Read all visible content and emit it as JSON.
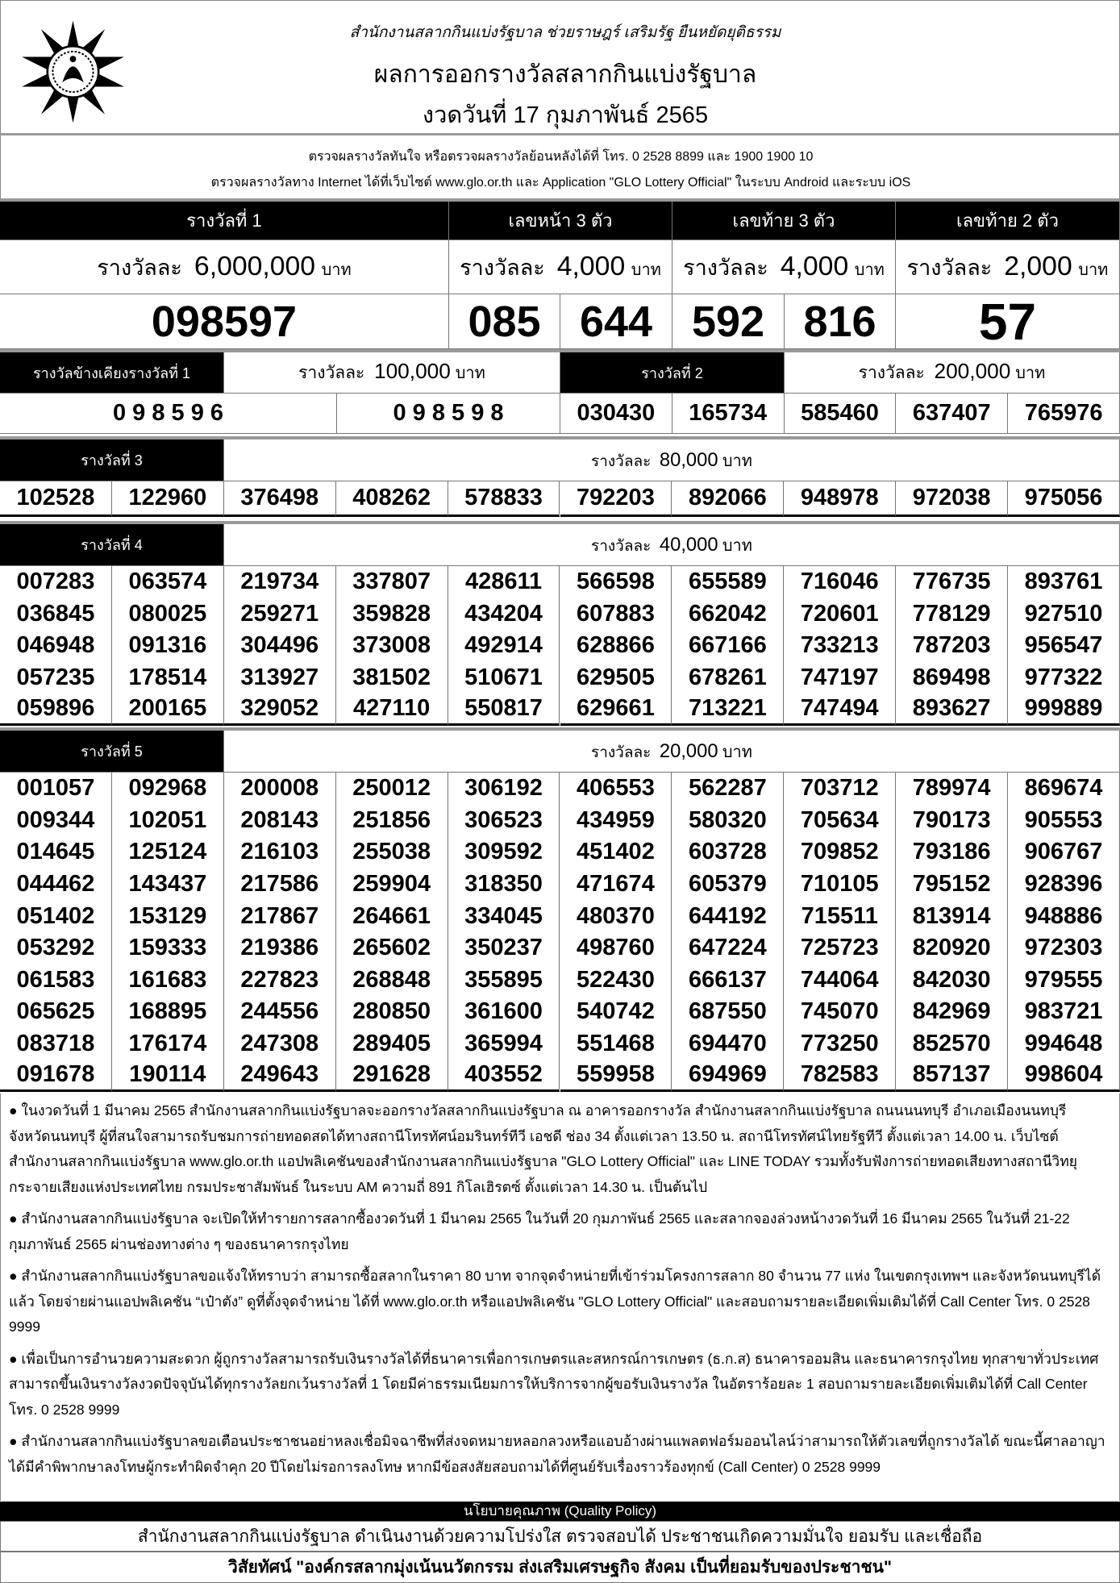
{
  "header": {
    "logo": "GLO emblem",
    "motto": "สำนักงานสลากกินแบ่งรัฐบาล  ช่วยราษฎร์  เสริมรัฐ  ยืนหยัดยุติธรรม",
    "title": "ผลการออกรางวัลสลากกินแบ่งรัฐบาล",
    "draw_date": "งวดวันที่ 17 กุมภาพันธ์ 2565"
  },
  "info": {
    "line1": "ตรวจผลรางวัลทันใจ  หรือตรวจผลรางวัลย้อนหลังได้ที่  โทร. 0 2528 8899 และ 1900 1900 10",
    "line2": "ตรวจผลรางวัลทาง Internet ได้ที่เว็บไซต์  www.glo.or.th และ Application \"GLO Lottery Official\" ในระบบ Android และระบบ iOS"
  },
  "per_prize": "รางวัลละ",
  "baht": "บาท",
  "top": {
    "first": {
      "label": "รางวัลที่ 1",
      "amount": "6,000,000",
      "number": "098597"
    },
    "front3": {
      "label": "เลขหน้า 3 ตัว",
      "amount": "4,000",
      "numbers": [
        "085",
        "644"
      ]
    },
    "last3": {
      "label": "เลขท้าย 3 ตัว",
      "amount": "4,000",
      "numbers": [
        "592",
        "816"
      ]
    },
    "last2": {
      "label": "เลขท้าย 2 ตัว",
      "amount": "2,000",
      "number": "57"
    }
  },
  "near_first": {
    "label": "รางวัลข้างเคียงรางวัลที่ 1",
    "amount": "100,000",
    "numbers": [
      "0 9 8 5 9 6",
      "0 9 8 5 9 8"
    ]
  },
  "second": {
    "label": "รางวัลที่  2",
    "amount": "200,000",
    "numbers": [
      "030430",
      "165734",
      "585460",
      "637407",
      "765976"
    ]
  },
  "third": {
    "label": "รางวัลที่  3",
    "amount": "80,000",
    "rows": [
      [
        "102528",
        "122960",
        "376498",
        "408262",
        "578833",
        "792203",
        "892066",
        "948978",
        "972038",
        "975056"
      ]
    ]
  },
  "fourth": {
    "label": "รางวัลที่  4",
    "amount": "40,000",
    "rows": [
      [
        "007283",
        "063574",
        "219734",
        "337807",
        "428611",
        "566598",
        "655589",
        "716046",
        "776735",
        "893761"
      ],
      [
        "036845",
        "080025",
        "259271",
        "359828",
        "434204",
        "607883",
        "662042",
        "720601",
        "778129",
        "927510"
      ],
      [
        "046948",
        "091316",
        "304496",
        "373008",
        "492914",
        "628866",
        "667166",
        "733213",
        "787203",
        "956547"
      ],
      [
        "057235",
        "178514",
        "313927",
        "381502",
        "510671",
        "629505",
        "678261",
        "747197",
        "869498",
        "977322"
      ],
      [
        "059896",
        "200165",
        "329052",
        "427110",
        "550817",
        "629661",
        "713221",
        "747494",
        "893627",
        "999889"
      ]
    ]
  },
  "fifth": {
    "label": "รางวัลที่  5",
    "amount": "20,000",
    "rows": [
      [
        "001057",
        "092968",
        "200008",
        "250012",
        "306192",
        "406553",
        "562287",
        "703712",
        "789974",
        "869674"
      ],
      [
        "009344",
        "102051",
        "208143",
        "251856",
        "306523",
        "434959",
        "580320",
        "705634",
        "790173",
        "905553"
      ],
      [
        "014645",
        "125124",
        "216103",
        "255038",
        "309592",
        "451402",
        "603728",
        "709852",
        "793186",
        "906767"
      ],
      [
        "044462",
        "143437",
        "217586",
        "259904",
        "318350",
        "471674",
        "605379",
        "710105",
        "795152",
        "928396"
      ],
      [
        "051402",
        "153129",
        "217867",
        "264661",
        "334045",
        "480370",
        "644192",
        "715511",
        "813914",
        "948886"
      ],
      [
        "053292",
        "159333",
        "219386",
        "265602",
        "350237",
        "498760",
        "647224",
        "725723",
        "820920",
        "972303"
      ],
      [
        "061583",
        "161683",
        "227823",
        "268848",
        "355895",
        "522430",
        "666137",
        "744064",
        "842030",
        "979555"
      ],
      [
        "065625",
        "168895",
        "244556",
        "280850",
        "361600",
        "540742",
        "687550",
        "745070",
        "842969",
        "983721"
      ],
      [
        "083718",
        "176174",
        "247308",
        "289405",
        "365994",
        "551468",
        "694470",
        "773250",
        "852570",
        "994648"
      ],
      [
        "091678",
        "190114",
        "249643",
        "291628",
        "403552",
        "559958",
        "694969",
        "782583",
        "857137",
        "998604"
      ]
    ]
  },
  "notes": [
    "● ในงวดวันที่ 1 มีนาคม 2565  สำนักงานสลากกินแบ่งรัฐบาลจะออกรางวัลสลากกินแบ่งรัฐบาล ณ อาคารออกรางวัล สำนักงานสลากกินแบ่งรัฐบาล ถนนนนทบุรี อำเภอเมืองนนทบุรี จังหวัดนนทบุรี ผู้ที่สนใจสามารถรับชมการถ่ายทอดสดได้ทางสถานีโทรทัศน์อมรินทร์ทีวี เอชดี ช่อง 34 ตั้งแต่เวลา 13.50 น. สถานีโทรทัศน์ไทยรัฐทีวี ตั้งแต่เวลา 14.00 น. เว็บไซต์สำนักงานสลากกินแบ่งรัฐบาล www.glo.or.th แอปพลิเคชันของสำนักงานสลากกินแบ่งรัฐบาล \"GLO Lottery Official\" และ LINE TODAY รวมทั้งรับฟังการถ่ายทอดเสียงทางสถานีวิทยุกระจายเสียงแห่งประเทศไทย  กรมประชาสัมพันธ์ ในระบบ AM ความถี่ 891 กิโลเฮิรตซ์  ตั้งแต่เวลา 14.30 น. เป็นต้นไป",
    "● สำนักงานสลากกินแบ่งรัฐบาล จะเปิดให้ทำรายการสลากซื้องวดวันที่ 1 มีนาคม 2565 ในวันที่ 20 กุมภาพันธ์ 2565 และสลากจองล่วงหน้างวดวันที่ 16 มีนาคม 2565 ในวันที่ 21-22 กุมภาพันธ์ 2565 ผ่านช่องทางต่าง ๆ ของธนาคารกรุงไทย",
    "● สำนักงานสลากกินแบ่งรัฐบาลขอแจ้งให้ทราบว่า สามารถซื้อสลากในราคา 80 บาท จากจุดจำหน่ายที่เข้าร่วมโครงการสลาก 80 จำนวน 77 แห่ง ในเขตกรุงเทพฯ และจังหวัดนนทบุรีได้แล้ว โดยจ่ายผ่านแอปพลิเคชัน “เป๋าตัง” ดูที่ตั้งจุดจำหน่าย ได้ที่ www.glo.or.th หรือแอปพลิเคชัน \"GLO Lottery Official\" และสอบถามรายละเอียดเพิ่มเติมได้ที่ Call Center โทร. 0 2528 9999",
    "● เพื่อเป็นการอำนวยความสะดวก ผู้ถูกรางวัลสามารถรับเงินรางวัลได้ที่ธนาคารเพื่อการเกษตรและสหกรณ์การเกษตร (ธ.ก.ส) ธนาคารออมสิน และธนาคารกรุงไทย ทุกสาขาทั่วประเทศ สามารถขึ้นเงินรางวัลงวดปัจจุบันได้ทุกรางวัลยกเว้นรางวัลที่ 1 โดยมีค่าธรรมเนียมการให้บริการจากผู้ขอรับเงินรางวัล ในอัตราร้อยละ 1 สอบถามรายละเอียดเพิ่มเติมได้ที่  Call Center โทร. 0 2528 9999",
    "● สำนักงานสลากกินแบ่งรัฐบาลขอเตือนประชาชนอย่าหลงเชื่อมิจฉาชีพที่ส่งจดหมายหลอกลวงหรือแอบอ้างผ่านแพลตฟอร์มออนไลน์ว่าสามารถให้ตัวเลขที่ถูกรางวัลได้ ขณะนี้ศาลอาญาได้มีคำพิพากษาลงโทษผู้กระทำผิดจำคุก 20 ปีโดยไม่รอการลงโทษ หากมีข้อสงสัยสอบถามได้ที่ศูนย์รับเรื่องราวร้องทุกข์ (Call Center) 0 2528 9999"
  ],
  "footer": {
    "quality_policy": "นโยบายคุณภาพ (Quality Policy)",
    "policy": "สำนักงานสลากกินแบ่งรัฐบาล ดำเนินงานด้วยความโปร่งใส ตรวจสอบได้ ประชาชนเกิดความมั่นใจ ยอมรับ และเชื่อถือ",
    "vision": "วิสัยทัศน์ \"องค์กรสลากมุ่งเน้นนวัตกรรม ส่งเสริมเศรษฐกิจ สังคม เป็นที่ยอมรับของประชาชน\""
  }
}
